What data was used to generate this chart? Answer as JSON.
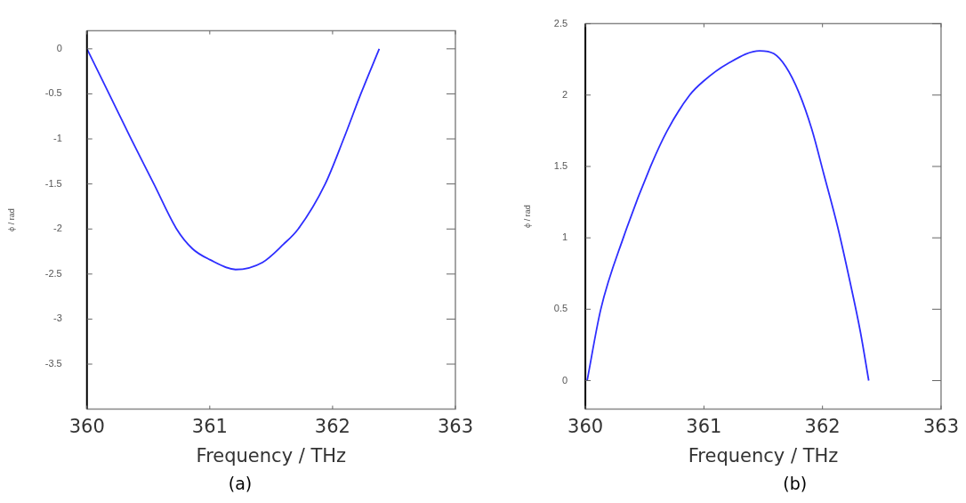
{
  "chart_data": [
    {
      "type": "line",
      "xlabel": "Frequency / THz",
      "ylabel": "ϕ / rad",
      "annotations": [
        "(a)"
      ],
      "xlim": [
        360,
        363
      ],
      "xticks": [
        360,
        361,
        362,
        363
      ],
      "ylim": [
        -4,
        0.2
      ],
      "yticks": [
        0,
        -0.5,
        -1,
        -1.5,
        -2,
        -2.5,
        -3,
        -3.5
      ],
      "grid": false,
      "legend": false,
      "marker": "none",
      "line_style": "solid",
      "series": [
        {
          "color": "#2e2eff",
          "x": [
            360,
            360.18,
            360.36,
            360.545,
            360.73,
            360.86,
            361.0,
            361.21,
            361.43,
            361.6,
            361.72,
            361.94,
            362.09,
            362.23,
            362.38
          ],
          "values": [
            0,
            -0.5,
            -1,
            -1.5,
            -2,
            -2.22,
            -2.34,
            -2.45,
            -2.37,
            -2.17,
            -2,
            -1.5,
            -1,
            -0.5,
            0
          ]
        }
      ]
    },
    {
      "type": "line",
      "xlabel": "Frequency / THz",
      "ylabel": "ϕ / rad",
      "annotations": [
        "(b)"
      ],
      "xlim": [
        360,
        363
      ],
      "xticks": [
        360,
        361,
        362,
        363
      ],
      "ylim": [
        -0.2,
        2.5
      ],
      "yticks": [
        0,
        0.5,
        1,
        1.5,
        2,
        2.5
      ],
      "grid": false,
      "legend": false,
      "marker": "none",
      "line_style": "solid",
      "series": [
        {
          "color": "#2e2eff",
          "x": [
            360.015,
            360.13,
            360.32,
            360.55,
            360.69,
            360.88,
            361.0,
            361.2,
            361.47,
            361.59,
            361.69,
            361.8,
            361.91,
            362.01,
            362.13,
            362.23,
            362.32,
            362.39
          ],
          "values": [
            0,
            0.5,
            1,
            1.5,
            1.75,
            2,
            2.1,
            2.22,
            2.31,
            2.29,
            2.2,
            2.02,
            1.76,
            1.45,
            1.07,
            0.7,
            0.34,
            0
          ]
        }
      ]
    }
  ]
}
